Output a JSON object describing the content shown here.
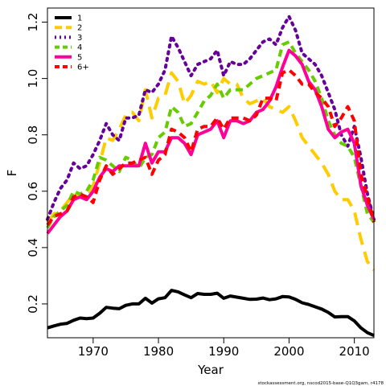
{
  "chart_data": {
    "type": "line",
    "xlabel": "Year",
    "ylabel": "F",
    "xlim": [
      1963,
      2013
    ],
    "ylim": [
      0.08,
      1.25
    ],
    "x_ticks": [
      1970,
      1980,
      1990,
      2000,
      2010
    ],
    "y_ticks": [
      0.2,
      0.4,
      0.6,
      0.8,
      1.0,
      1.2
    ],
    "grid": false,
    "legend_position": "top-left",
    "footnote": "stockassessment.org, nscod2015-base-Q1Q3gam, r4178",
    "series": [
      {
        "name": "1",
        "color": "#000000",
        "dash": "solid",
        "x": [
          1963,
          1964,
          1965,
          1966,
          1967,
          1968,
          1969,
          1970,
          1971,
          1972,
          1973,
          1974,
          1975,
          1976,
          1977,
          1978,
          1979,
          1980,
          1981,
          1982,
          1983,
          1984,
          1985,
          1986,
          1987,
          1988,
          1989,
          1990,
          1991,
          1992,
          1993,
          1994,
          1995,
          1996,
          1997,
          1998,
          1999,
          2000,
          2001,
          2002,
          2003,
          2004,
          2005,
          2006,
          2007,
          2008,
          2009,
          2010,
          2011,
          2012,
          2013
        ],
        "values": [
          0.115,
          0.122,
          0.128,
          0.131,
          0.142,
          0.15,
          0.148,
          0.15,
          0.167,
          0.188,
          0.185,
          0.183,
          0.195,
          0.2,
          0.2,
          0.22,
          0.203,
          0.218,
          0.222,
          0.248,
          0.243,
          0.232,
          0.222,
          0.237,
          0.234,
          0.234,
          0.238,
          0.22,
          0.228,
          0.224,
          0.22,
          0.216,
          0.217,
          0.221,
          0.215,
          0.218,
          0.226,
          0.225,
          0.216,
          0.204,
          0.198,
          0.19,
          0.182,
          0.17,
          0.154,
          0.155,
          0.155,
          0.14,
          0.115,
          0.098,
          0.088
        ]
      },
      {
        "name": "2",
        "color": "#ffcc00",
        "dash": "long",
        "x": [
          1963,
          1964,
          1965,
          1966,
          1967,
          1968,
          1969,
          1970,
          1971,
          1972,
          1973,
          1974,
          1975,
          1976,
          1977,
          1978,
          1979,
          1980,
          1981,
          1982,
          1983,
          1984,
          1985,
          1986,
          1987,
          1988,
          1989,
          1990,
          1991,
          1992,
          1993,
          1994,
          1995,
          1996,
          1997,
          1998,
          1999,
          2000,
          2001,
          2002,
          2003,
          2004,
          2005,
          2006,
          2007,
          2008,
          2009,
          2010,
          2011,
          2012,
          2013
        ],
        "values": [
          0.49,
          0.52,
          0.53,
          0.56,
          0.59,
          0.58,
          0.57,
          0.62,
          0.7,
          0.79,
          0.78,
          0.82,
          0.87,
          0.88,
          0.85,
          0.96,
          0.86,
          0.93,
          0.94,
          1.02,
          0.99,
          0.91,
          0.94,
          0.99,
          0.98,
          0.99,
          0.95,
          1.0,
          0.98,
          0.98,
          0.93,
          0.91,
          0.92,
          0.93,
          0.9,
          0.89,
          0.88,
          0.9,
          0.85,
          0.79,
          0.76,
          0.73,
          0.7,
          0.66,
          0.6,
          0.57,
          0.57,
          0.53,
          0.43,
          0.35,
          0.32
        ]
      },
      {
        "name": "3",
        "color": "#660099",
        "dash": "dotted",
        "x": [
          1963,
          1964,
          1965,
          1966,
          1967,
          1968,
          1969,
          1970,
          1971,
          1972,
          1973,
          1974,
          1975,
          1976,
          1977,
          1978,
          1979,
          1980,
          1981,
          1982,
          1983,
          1984,
          1985,
          1986,
          1987,
          1988,
          1989,
          1990,
          1991,
          1992,
          1993,
          1994,
          1995,
          1996,
          1997,
          1998,
          1999,
          2000,
          2001,
          2002,
          2003,
          2004,
          2005,
          2006,
          2007,
          2008,
          2009,
          2010,
          2011,
          2012,
          2013
        ],
        "values": [
          0.5,
          0.56,
          0.61,
          0.64,
          0.7,
          0.68,
          0.69,
          0.73,
          0.78,
          0.84,
          0.8,
          0.78,
          0.86,
          0.86,
          0.87,
          0.96,
          0.95,
          0.98,
          1.03,
          1.15,
          1.11,
          1.06,
          1.01,
          1.05,
          1.06,
          1.07,
          1.1,
          1.01,
          1.06,
          1.05,
          1.05,
          1.07,
          1.1,
          1.13,
          1.14,
          1.12,
          1.18,
          1.22,
          1.17,
          1.09,
          1.07,
          1.05,
          1.01,
          0.95,
          0.89,
          0.8,
          0.76,
          0.83,
          0.72,
          0.59,
          0.5
        ]
      },
      {
        "name": "4",
        "color": "#66cc00",
        "dash": "dashed",
        "x": [
          1963,
          1964,
          1965,
          1966,
          1967,
          1968,
          1969,
          1970,
          1971,
          1972,
          1973,
          1974,
          1975,
          1976,
          1977,
          1978,
          1979,
          1980,
          1981,
          1982,
          1983,
          1984,
          1985,
          1986,
          1987,
          1988,
          1989,
          1990,
          1991,
          1992,
          1993,
          1994,
          1995,
          1996,
          1997,
          1998,
          1999,
          2000,
          2001,
          2002,
          2003,
          2004,
          2005,
          2006,
          2007,
          2008,
          2009,
          2010,
          2011,
          2012,
          2013
        ],
        "values": [
          0.47,
          0.51,
          0.53,
          0.55,
          0.6,
          0.59,
          0.6,
          0.64,
          0.72,
          0.71,
          0.69,
          0.67,
          0.72,
          0.71,
          0.68,
          0.72,
          0.73,
          0.79,
          0.81,
          0.9,
          0.88,
          0.83,
          0.84,
          0.88,
          0.92,
          0.94,
          0.98,
          0.93,
          0.96,
          0.96,
          0.96,
          0.98,
          1.0,
          1.01,
          1.02,
          1.03,
          1.12,
          1.13,
          1.09,
          1.06,
          1.03,
          0.99,
          0.93,
          0.85,
          0.8,
          0.77,
          0.76,
          0.72,
          0.62,
          0.52,
          0.49
        ]
      },
      {
        "name": "5",
        "color": "#ff0099",
        "dash": "solid",
        "x": [
          1963,
          1964,
          1965,
          1966,
          1967,
          1968,
          1969,
          1970,
          1971,
          1972,
          1973,
          1974,
          1975,
          1976,
          1977,
          1978,
          1979,
          1980,
          1981,
          1982,
          1983,
          1984,
          1985,
          1986,
          1987,
          1988,
          1989,
          1990,
          1991,
          1992,
          1993,
          1994,
          1995,
          1996,
          1997,
          1998,
          1999,
          2000,
          2001,
          2002,
          2003,
          2004,
          2005,
          2006,
          2007,
          2008,
          2009,
          2010,
          2011,
          2012,
          2013
        ],
        "values": [
          0.45,
          0.48,
          0.51,
          0.53,
          0.57,
          0.58,
          0.57,
          0.6,
          0.65,
          0.68,
          0.67,
          0.69,
          0.69,
          0.69,
          0.69,
          0.77,
          0.7,
          0.74,
          0.74,
          0.79,
          0.79,
          0.77,
          0.73,
          0.8,
          0.81,
          0.82,
          0.85,
          0.79,
          0.85,
          0.85,
          0.84,
          0.85,
          0.88,
          0.89,
          0.92,
          0.97,
          1.04,
          1.1,
          1.08,
          1.05,
          0.99,
          0.96,
          0.9,
          0.82,
          0.79,
          0.81,
          0.82,
          0.77,
          0.62,
          0.55,
          0.5
        ]
      },
      {
        "name": "6+",
        "color": "#ff0000",
        "dash": "dashed",
        "x": [
          1963,
          1964,
          1965,
          1966,
          1967,
          1968,
          1969,
          1970,
          1971,
          1972,
          1973,
          1974,
          1975,
          1976,
          1977,
          1978,
          1979,
          1980,
          1981,
          1982,
          1983,
          1984,
          1985,
          1986,
          1987,
          1988,
          1989,
          1990,
          1991,
          1992,
          1993,
          1994,
          1995,
          1996,
          1997,
          1998,
          1999,
          2000,
          2001,
          2002,
          2003,
          2004,
          2005,
          2006,
          2007,
          2008,
          2009,
          2010,
          2011,
          2012,
          2013
        ],
        "values": [
          0.48,
          0.51,
          0.52,
          0.53,
          0.58,
          0.59,
          0.58,
          0.56,
          0.64,
          0.69,
          0.66,
          0.68,
          0.7,
          0.7,
          0.71,
          0.72,
          0.66,
          0.71,
          0.73,
          0.82,
          0.81,
          0.79,
          0.74,
          0.82,
          0.83,
          0.83,
          0.86,
          0.82,
          0.86,
          0.86,
          0.86,
          0.85,
          0.87,
          0.93,
          0.93,
          0.92,
          1.02,
          1.03,
          1.01,
          0.98,
          0.98,
          0.95,
          0.93,
          0.9,
          0.83,
          0.86,
          0.9,
          0.85,
          0.66,
          0.58,
          0.49
        ]
      }
    ]
  }
}
